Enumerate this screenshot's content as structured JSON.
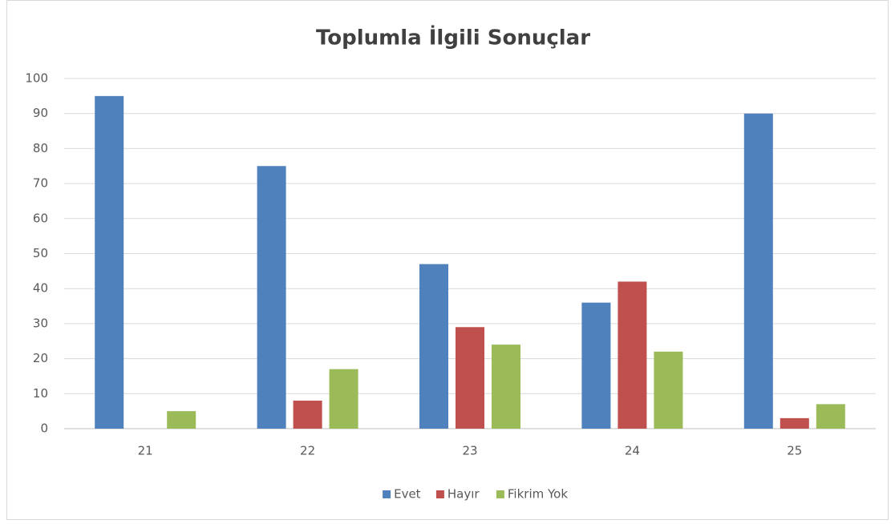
{
  "chart_data": {
    "type": "bar",
    "title": "Toplumla İlgili Sonuçlar",
    "categories": [
      "21",
      "22",
      "23",
      "24",
      "25"
    ],
    "series": [
      {
        "name": "Evet",
        "color": "#4f81bd",
        "values": [
          95,
          75,
          47,
          36,
          90
        ]
      },
      {
        "name": "Hayır",
        "color": "#c0504d",
        "values": [
          0,
          8,
          29,
          42,
          3
        ]
      },
      {
        "name": "Fikrim Yok",
        "color": "#9bbb59",
        "values": [
          5,
          17,
          24,
          22,
          7
        ]
      }
    ],
    "ylim": [
      0,
      100
    ],
    "yticks": [
      0,
      10,
      20,
      30,
      40,
      50,
      60,
      70,
      80,
      90,
      100
    ],
    "grid": true,
    "legend": "bottom"
  }
}
